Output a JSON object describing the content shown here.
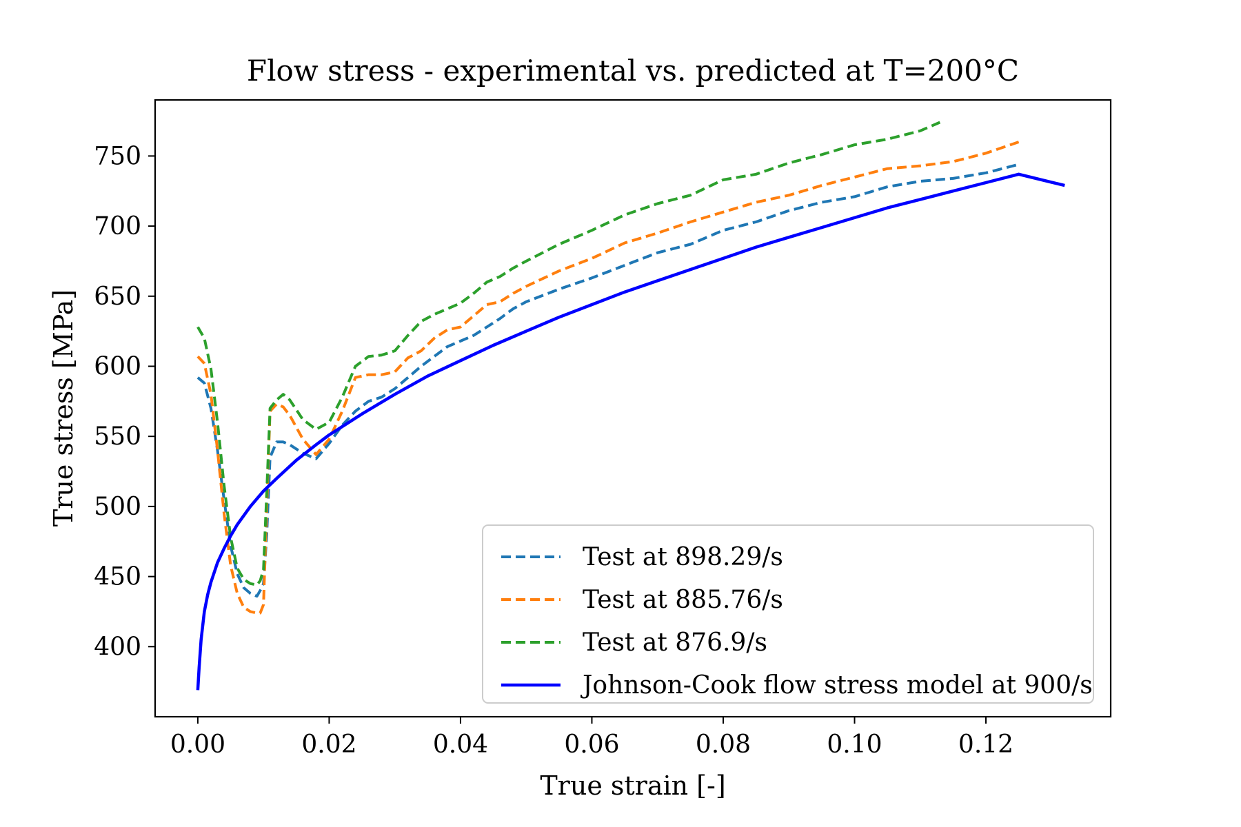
{
  "chart_data": {
    "type": "line",
    "title": "Flow stress - experimental vs. predicted at T=200°C",
    "xlabel": "True strain [-]",
    "ylabel": "True stress [MPa]",
    "xlim": [
      -0.0065,
      0.139
    ],
    "ylim": [
      350,
      790
    ],
    "xticks": [
      0.0,
      0.02,
      0.04,
      0.06,
      0.08,
      0.1,
      0.12
    ],
    "xtick_labels": [
      "0.00",
      "0.02",
      "0.04",
      "0.06",
      "0.08",
      "0.10",
      "0.12"
    ],
    "yticks": [
      400,
      450,
      500,
      550,
      600,
      650,
      700,
      750
    ],
    "ytick_labels": [
      "400",
      "450",
      "500",
      "550",
      "600",
      "650",
      "700",
      "750"
    ],
    "grid": false,
    "legend_position": "lower-right",
    "series": [
      {
        "name": "Test at 898.29/s",
        "color": "#1f77b4",
        "style": "dashed",
        "x": [
          0.0,
          0.001,
          0.002,
          0.003,
          0.004,
          0.005,
          0.006,
          0.007,
          0.008,
          0.009,
          0.0095,
          0.01,
          0.0105,
          0.011,
          0.012,
          0.013,
          0.014,
          0.016,
          0.018,
          0.02,
          0.022,
          0.024,
          0.026,
          0.028,
          0.03,
          0.032,
          0.034,
          0.036,
          0.038,
          0.04,
          0.042,
          0.044,
          0.046,
          0.048,
          0.05,
          0.055,
          0.06,
          0.065,
          0.07,
          0.075,
          0.08,
          0.085,
          0.09,
          0.095,
          0.1,
          0.105,
          0.11,
          0.115,
          0.12,
          0.125
        ],
        "values": [
          592,
          588,
          570,
          540,
          505,
          472,
          452,
          442,
          438,
          436,
          440,
          445,
          480,
          535,
          546,
          546,
          544,
          538,
          534,
          545,
          558,
          568,
          575,
          578,
          584,
          592,
          600,
          607,
          614,
          618,
          622,
          628,
          634,
          641,
          646,
          655,
          663,
          672,
          681,
          687,
          697,
          703,
          711,
          717,
          721,
          728,
          732,
          734,
          738,
          744
        ]
      },
      {
        "name": "Test at 885.76/s",
        "color": "#ff7f0e",
        "style": "dashed",
        "x": [
          0.0,
          0.001,
          0.002,
          0.003,
          0.004,
          0.005,
          0.006,
          0.007,
          0.008,
          0.009,
          0.0095,
          0.01,
          0.0105,
          0.011,
          0.012,
          0.013,
          0.014,
          0.016,
          0.018,
          0.02,
          0.022,
          0.024,
          0.026,
          0.028,
          0.03,
          0.032,
          0.034,
          0.036,
          0.038,
          0.04,
          0.042,
          0.044,
          0.046,
          0.048,
          0.05,
          0.055,
          0.06,
          0.065,
          0.07,
          0.075,
          0.08,
          0.085,
          0.09,
          0.095,
          0.1,
          0.105,
          0.11,
          0.115,
          0.12,
          0.125
        ],
        "values": [
          607,
          602,
          580,
          540,
          495,
          458,
          438,
          428,
          425,
          424,
          424,
          430,
          500,
          568,
          573,
          571,
          565,
          548,
          537,
          548,
          568,
          592,
          594,
          594,
          596,
          606,
          611,
          620,
          626,
          628,
          636,
          644,
          646,
          652,
          657,
          668,
          677,
          688,
          695,
          703,
          710,
          717,
          722,
          729,
          735,
          741,
          743,
          746,
          752,
          760
        ]
      },
      {
        "name": "Test at 876.9/s",
        "color": "#2ca02c",
        "style": "dashed",
        "x": [
          0.0,
          0.001,
          0.002,
          0.003,
          0.004,
          0.005,
          0.006,
          0.007,
          0.008,
          0.009,
          0.0095,
          0.01,
          0.0105,
          0.011,
          0.012,
          0.013,
          0.014,
          0.016,
          0.018,
          0.02,
          0.022,
          0.024,
          0.026,
          0.028,
          0.03,
          0.032,
          0.034,
          0.036,
          0.038,
          0.04,
          0.042,
          0.044,
          0.046,
          0.048,
          0.05,
          0.055,
          0.06,
          0.065,
          0.07,
          0.075,
          0.08,
          0.085,
          0.09,
          0.095,
          0.1,
          0.105,
          0.11,
          0.113
        ],
        "values": [
          628,
          620,
          598,
          560,
          515,
          478,
          456,
          448,
          445,
          444,
          447,
          455,
          510,
          570,
          576,
          580,
          576,
          562,
          555,
          560,
          578,
          600,
          607,
          608,
          611,
          622,
          632,
          637,
          641,
          645,
          652,
          660,
          664,
          670,
          675,
          687,
          697,
          708,
          716,
          722,
          733,
          737,
          745,
          751,
          758,
          762,
          768,
          774
        ]
      },
      {
        "name": "Johnson-Cook flow stress model at 900/s",
        "color": "#0000ff",
        "style": "solid",
        "x": [
          0.0,
          0.0002,
          0.0005,
          0.001,
          0.0015,
          0.002,
          0.003,
          0.004,
          0.005,
          0.006,
          0.008,
          0.01,
          0.012,
          0.015,
          0.018,
          0.02,
          0.025,
          0.03,
          0.035,
          0.04,
          0.045,
          0.05,
          0.055,
          0.06,
          0.065,
          0.07,
          0.075,
          0.08,
          0.085,
          0.09,
          0.095,
          0.1,
          0.105,
          0.11,
          0.115,
          0.12,
          0.125,
          0.132
        ],
        "values": [
          369,
          385,
          405,
          425,
          437,
          446,
          460,
          470,
          479,
          487,
          500,
          511,
          520,
          533,
          544,
          551,
          566,
          580,
          593,
          604,
          615,
          625,
          635,
          644,
          653,
          661,
          669,
          677,
          685,
          692,
          699,
          706,
          713,
          719,
          725,
          731,
          737,
          729
        ]
      }
    ]
  }
}
